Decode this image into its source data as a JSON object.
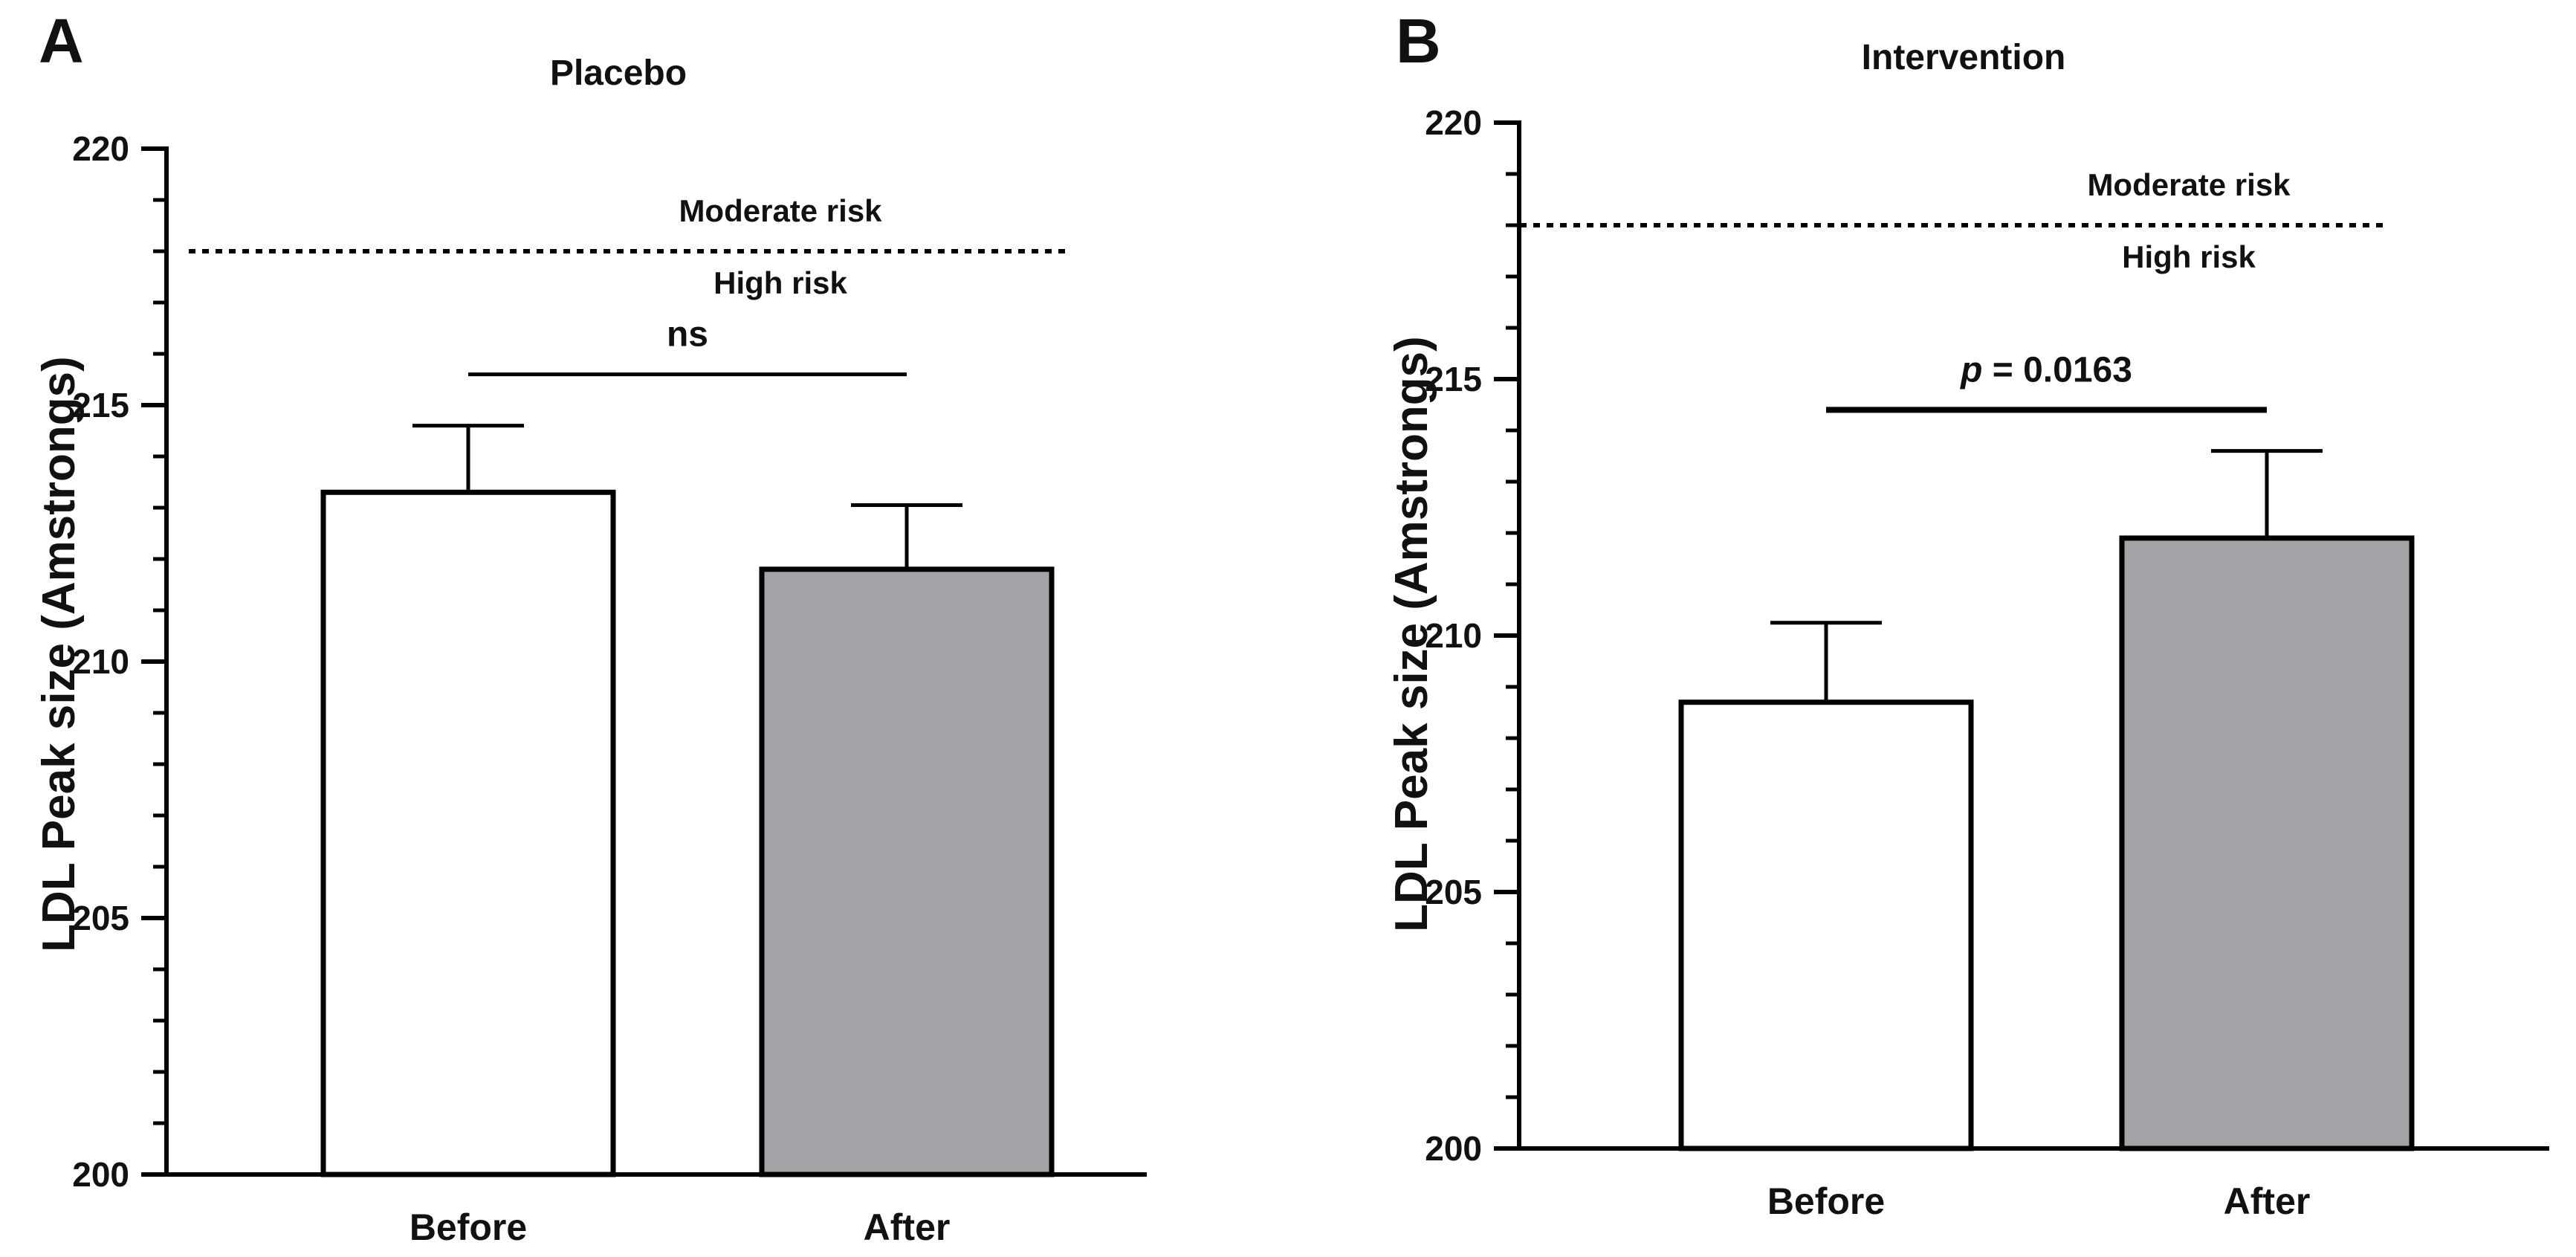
{
  "chart_data": [
    {
      "panel": "A",
      "type": "bar",
      "title": "Placebo",
      "ylabel": "LDL Peak size (Amstrongs)",
      "xlabel": "",
      "ylim": [
        200,
        220
      ],
      "yticks": [
        200,
        205,
        210,
        215,
        220
      ],
      "categories": [
        "Before",
        "After"
      ],
      "values": [
        213.3,
        211.8
      ],
      "errors": [
        1.3,
        1.25
      ],
      "colors": [
        "#ffffff",
        "#a3a2a7"
      ],
      "reference_line": {
        "y": 218,
        "label_above": "Moderate risk",
        "label_below": "High risk"
      },
      "significance": {
        "from": "Before",
        "to": "After",
        "y": 215.6,
        "text": "ns",
        "italic_prefix": ""
      }
    },
    {
      "panel": "B",
      "type": "bar",
      "title": "Intervention",
      "ylabel": "LDL Peak size (Amstrongs)",
      "xlabel": "",
      "ylim": [
        200,
        220
      ],
      "yticks": [
        200,
        205,
        210,
        215,
        220
      ],
      "categories": [
        "Before",
        "After"
      ],
      "values": [
        208.7,
        211.9
      ],
      "errors": [
        1.55,
        1.7
      ],
      "colors": [
        "#ffffff",
        "#a3a2a7"
      ],
      "reference_line": {
        "y": 218,
        "label_above": "Moderate risk",
        "label_below": "High risk"
      },
      "significance": {
        "from": "Before",
        "to": "After",
        "y": 214.4,
        "text": " = 0.0163",
        "italic_prefix": "p"
      }
    }
  ]
}
